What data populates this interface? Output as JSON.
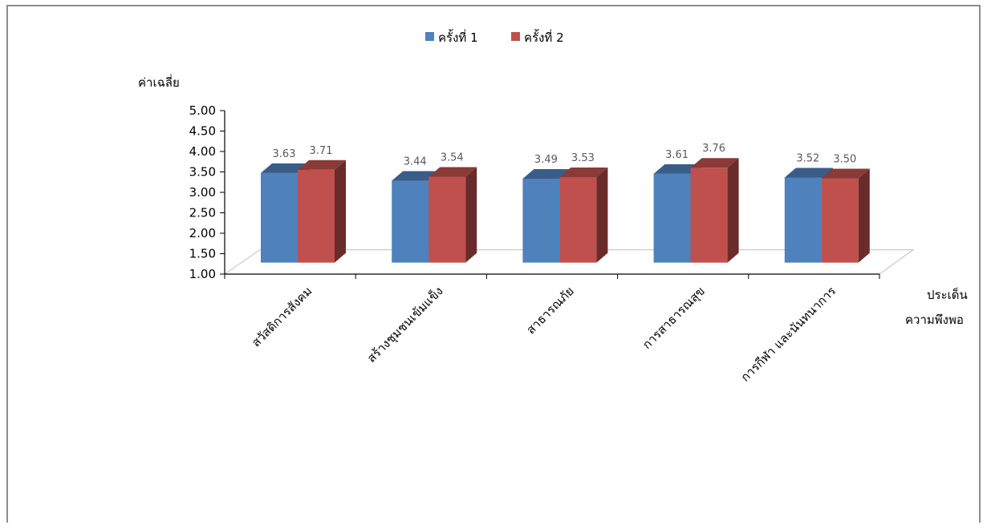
{
  "chart_data": {
    "type": "bar",
    "ylabel": "ค่าเฉลี่ย",
    "xlabel_line1": "ประเด็น",
    "xlabel_line2": "ความพึงพอ",
    "ylim": [
      1.0,
      5.0
    ],
    "yticks": [
      "5.00",
      "4.50",
      "4.00",
      "3.50",
      "3.00",
      "2.50",
      "2.00",
      "1.50",
      "1.00"
    ],
    "categories": [
      "สวัสดิการสังคม",
      "สร้างชุมชนเข้มแข็ง",
      "สาธารณภัย",
      "การสาธารณสุข",
      "การกีฬา และนันทนาการ"
    ],
    "series": [
      {
        "name": "ครั้งที่ 1",
        "values": [
          3.63,
          3.44,
          3.49,
          3.61,
          3.52
        ],
        "labels": [
          "3.63",
          "3.44",
          "3.49",
          "3.61",
          "3.52"
        ],
        "color": "#4f81bd"
      },
      {
        "name": "ครั้งที่ 2",
        "values": [
          3.71,
          3.54,
          3.53,
          3.76,
          3.5
        ],
        "labels": [
          "3.71",
          "3.54",
          "3.53",
          "3.76",
          "3.50"
        ],
        "color": "#c0504d"
      }
    ],
    "legend": "top",
    "grid": false,
    "style": "3d-clustered-column"
  }
}
